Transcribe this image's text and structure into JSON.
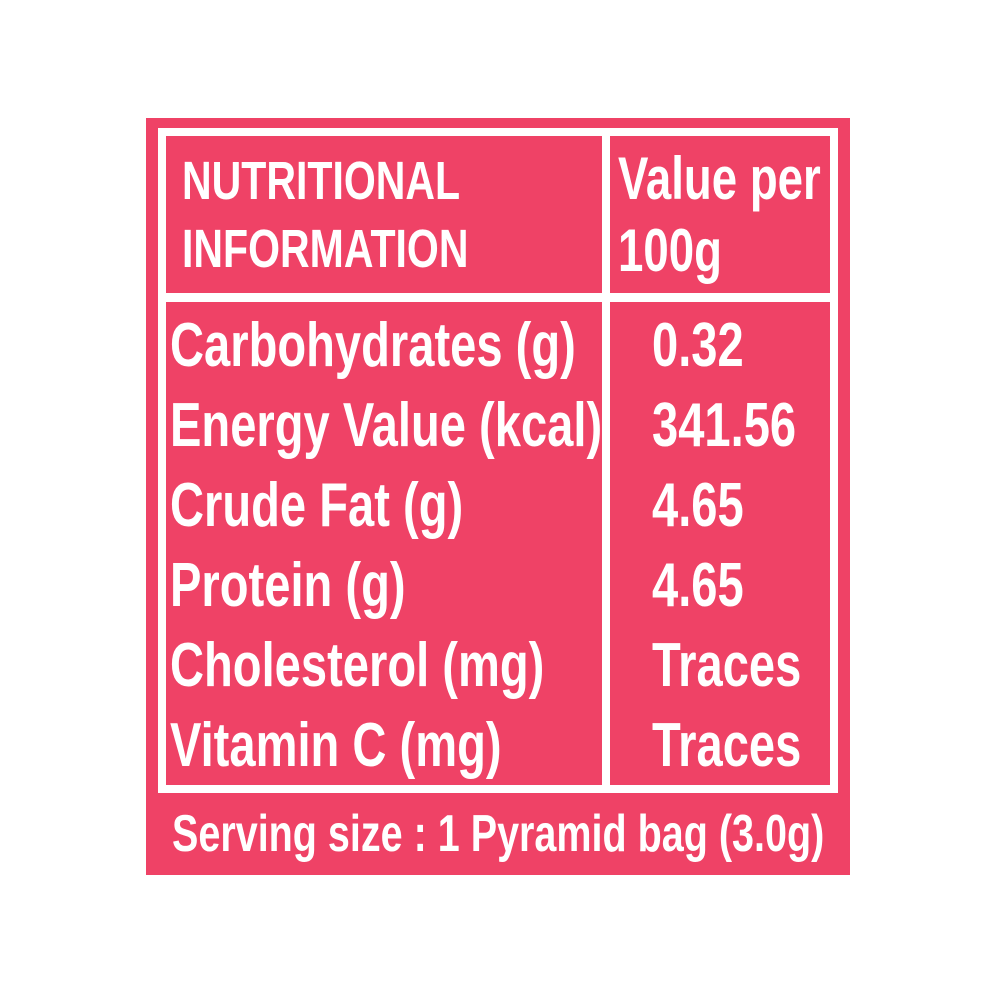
{
  "colors": {
    "panel_pink": "#ef4266",
    "line_white": "#ffffff",
    "text_white": "#ffffff",
    "page_background": "#ffffff"
  },
  "label": {
    "header": {
      "title_line1": "NUTRITIONAL",
      "title_line2": "INFORMATION",
      "value_column_line1": "Value per",
      "value_column_line2": "100g"
    },
    "rows": [
      {
        "label": "Carbohydrates (g)",
        "value": "0.32"
      },
      {
        "label": "Energy Value (kcal)",
        "value": "341.56"
      },
      {
        "label": "Crude Fat (g)",
        "value": "4.65"
      },
      {
        "label": "Protein (g)",
        "value": "4.65"
      },
      {
        "label": "Cholesterol (mg)",
        "value": "Traces"
      },
      {
        "label": "Vitamin C (mg)",
        "value": "Traces"
      }
    ],
    "serving_line": "Serving size : 1 Pyramid bag (3.0g)"
  }
}
